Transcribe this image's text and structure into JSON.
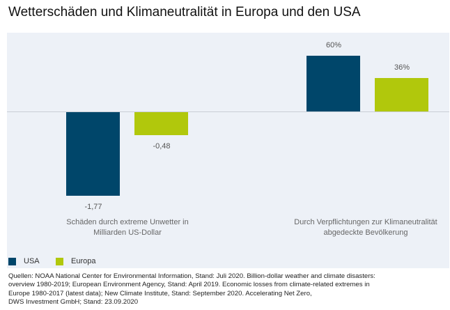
{
  "title": "Wetterschäden und Klimaneutralität in Europa und den USA",
  "colors": {
    "USA": "#00466a",
    "Europa": "#b1c80c",
    "panel": "#edf1f7"
  },
  "chart_data": {
    "type": "bar",
    "title": "Wetterschäden und Klimaneutralität in Europa und den USA",
    "categories": [
      "Schäden durch extreme Unwetter in Milliarden US-Dollar",
      "Durch Verpflichtungen zur Klimaneutralität abgedeckte Bevölkerung"
    ],
    "category_lines": [
      [
        "Schäden durch extreme Unwetter in",
        "Milliarden US-Dollar"
      ],
      [
        "Durch Verpflichtungen zur Klimaneutralität",
        "abgedeckte Bevölkerung"
      ]
    ],
    "series": [
      {
        "name": "USA",
        "values": [
          -1.77,
          60
        ],
        "labels": [
          "-1,77",
          "60%"
        ]
      },
      {
        "name": "Europa",
        "values": [
          -0.48,
          36
        ],
        "labels": [
          "-0,48",
          "36%"
        ]
      }
    ],
    "units": [
      "Mrd. USD",
      "%"
    ],
    "legend": "bottom-left",
    "grid": false
  },
  "source": [
    "Quellen: NOAA National Center for Environmental Information, Stand: Juli 2020. Billion-dollar weather and climate disasters:",
    "overview 1980-2019; European Environment Agency, Stand: April 2019. Economic losses from climate-related extremes in",
    "Europe 1980-2017 (latest data); New Climate Institute, Stand: September 2020. Accelerating Net Zero,",
    "DWS Investment GmbH; Stand: 23.09.2020"
  ]
}
